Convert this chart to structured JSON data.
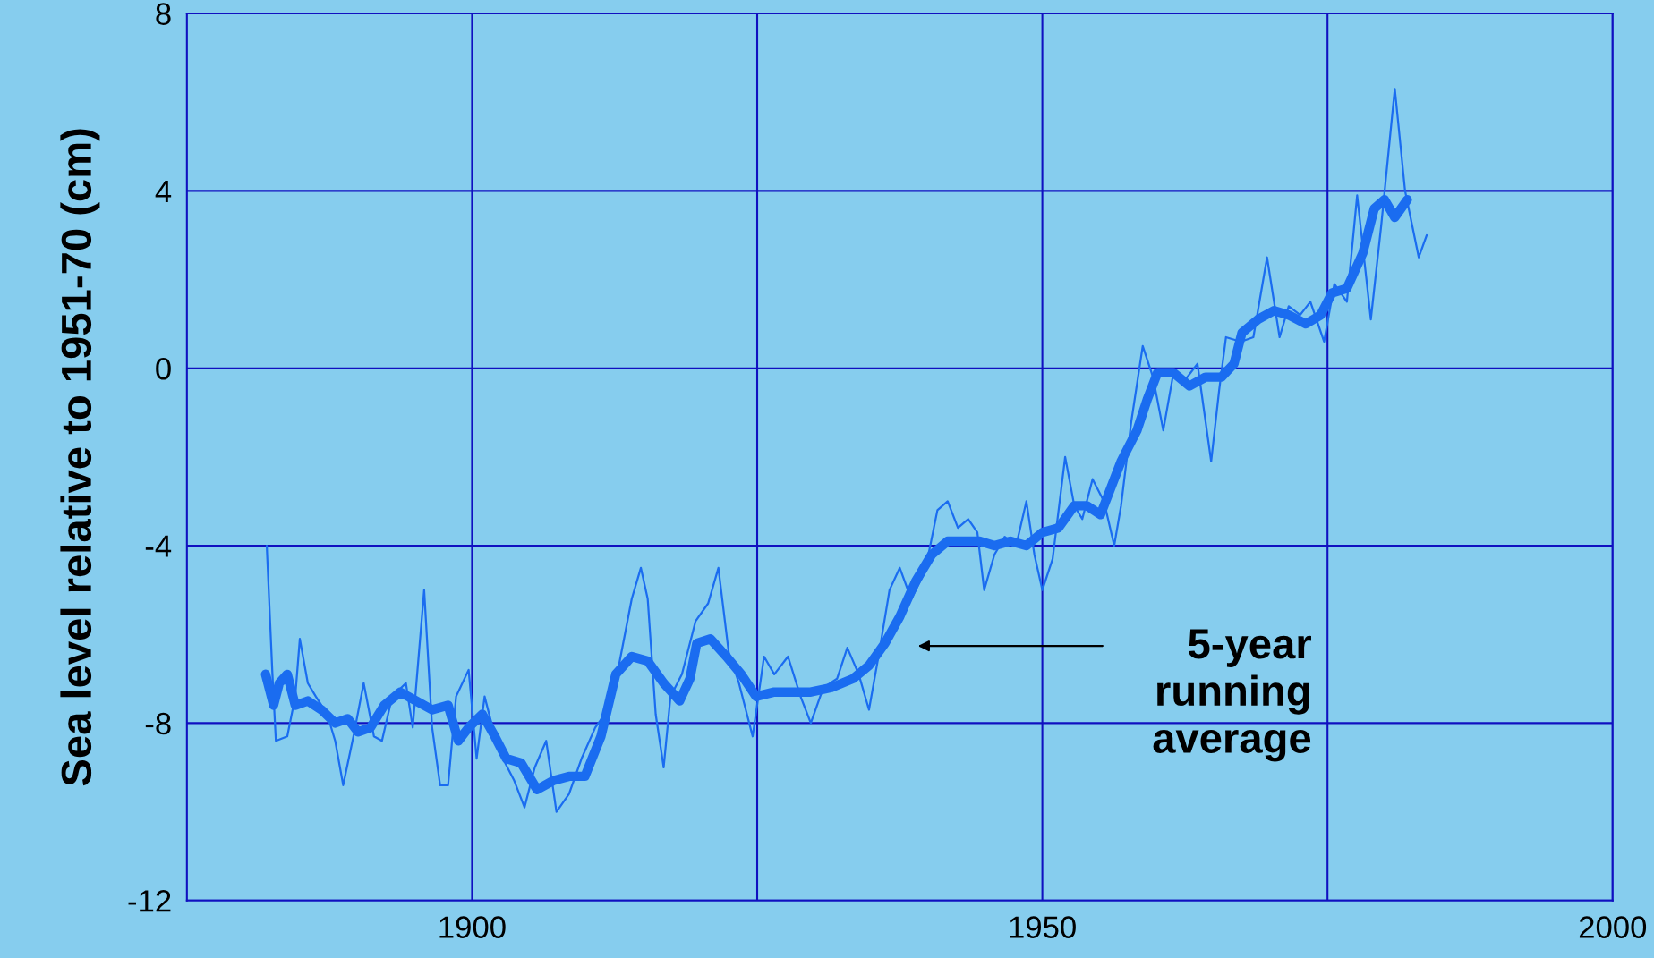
{
  "chart_data": {
    "type": "line",
    "ylabel": "Sea level relative to 1951-70 (cm)",
    "xlim": [
      1875,
      2000
    ],
    "xticks": [
      1900,
      {
        "value": 1925,
        "label": null
      },
      1950,
      {
        "value": 1975,
        "label": null
      },
      2000
    ],
    "ylim": [
      -12,
      8
    ],
    "yticks": [
      -12,
      -8,
      -4,
      0,
      4,
      8
    ],
    "grid": true,
    "line_style": "solid",
    "marker": "none",
    "annotations": [
      "5-year\nrunning\naverage"
    ],
    "series": [
      {
        "color": "#1a6cf0",
        "x": [
          1882.0,
          1882.5,
          1882.8,
          1883.8,
          1884.5,
          1884.9,
          1885.6,
          1886.3,
          1887.3,
          1888.0,
          1888.7,
          1889.6,
          1890.5,
          1891.4,
          1892.1,
          1893.0,
          1894.2,
          1894.8,
          1895.8,
          1896.5,
          1897.2,
          1897.9,
          1898.6,
          1899.7,
          1900.4,
          1901.1,
          1901.8,
          1902.7,
          1903.7,
          1904.6,
          1905.5,
          1906.5,
          1907.4,
          1908.5,
          1909.6,
          1910.8,
          1912.2,
          1913.1,
          1914.0,
          1914.8,
          1915.4,
          1916.1,
          1916.8,
          1917.4,
          1918.4,
          1919.6,
          1920.7,
          1921.6,
          1922.5,
          1923.4,
          1924.6,
          1925.6,
          1926.5,
          1927.7,
          1928.8,
          1929.7,
          1930.8,
          1932.0,
          1932.9,
          1933.9,
          1934.8,
          1935.7,
          1936.6,
          1937.5,
          1938.5,
          1939.7,
          1940.8,
          1941.7,
          1942.6,
          1943.5,
          1944.3,
          1944.9,
          1945.8,
          1946.7,
          1947.7,
          1948.6,
          1949.3,
          1950.0,
          1950.9,
          1952.0,
          1952.8,
          1953.5,
          1954.4,
          1955.4,
          1956.3,
          1956.9,
          1957.8,
          1958.8,
          1959.7,
          1960.6,
          1961.5,
          1962.4,
          1963.6,
          1964.8,
          1965.5,
          1966.1,
          1967.4,
          1968.5,
          1969.7,
          1970.8,
          1971.6,
          1972.6,
          1973.5,
          1974.7,
          1975.6,
          1976.7,
          1977.6,
          1978.8,
          1979.7,
          1980.9,
          1981.8,
          1983.0,
          1983.7
        ],
        "values": [
          -4.0,
          -6.9,
          -8.4,
          -8.3,
          -7.4,
          -6.1,
          -7.1,
          -7.4,
          -7.8,
          -8.4,
          -9.4,
          -8.3,
          -7.1,
          -8.3,
          -8.4,
          -7.4,
          -7.1,
          -8.1,
          -5.0,
          -8.1,
          -9.4,
          -9.4,
          -7.4,
          -6.8,
          -8.8,
          -7.4,
          -8.1,
          -8.8,
          -9.3,
          -9.9,
          -9.0,
          -8.4,
          -10.0,
          -9.6,
          -8.8,
          -8.1,
          -7.6,
          -6.4,
          -5.2,
          -4.5,
          -5.2,
          -7.8,
          -9.0,
          -7.4,
          -6.9,
          -5.7,
          -5.3,
          -4.5,
          -6.4,
          -7.1,
          -8.3,
          -6.5,
          -6.9,
          -6.5,
          -7.4,
          -8.0,
          -7.2,
          -7.0,
          -6.3,
          -6.9,
          -7.7,
          -6.4,
          -5.0,
          -4.5,
          -5.2,
          -4.6,
          -3.2,
          -3.0,
          -3.6,
          -3.4,
          -3.7,
          -5.0,
          -4.2,
          -3.8,
          -4.0,
          -3.0,
          -4.2,
          -5.0,
          -4.3,
          -2.0,
          -3.1,
          -3.4,
          -2.5,
          -3.0,
          -4.0,
          -3.1,
          -1.2,
          0.5,
          -0.2,
          -1.4,
          -0.1,
          -0.3,
          0.1,
          -2.1,
          -0.5,
          0.7,
          0.6,
          0.7,
          2.5,
          0.7,
          1.4,
          1.2,
          1.5,
          0.6,
          1.9,
          1.5,
          3.9,
          1.1,
          3.2,
          6.3,
          4.0,
          2.5,
          3.0
        ]
      },
      {
        "color": "#1a6cf0",
        "x": [
          1881.9,
          1882.6,
          1883.1,
          1883.8,
          1884.5,
          1885.6,
          1886.8,
          1888.0,
          1889.1,
          1890.0,
          1891.1,
          1892.3,
          1893.7,
          1895.1,
          1896.5,
          1897.9,
          1898.8,
          1899.7,
          1900.9,
          1902.0,
          1903.0,
          1904.3,
          1905.7,
          1907.1,
          1908.5,
          1909.9,
          1911.3,
          1912.6,
          1914.0,
          1915.4,
          1916.8,
          1918.2,
          1919.1,
          1919.7,
          1920.9,
          1922.3,
          1923.6,
          1924.9,
          1926.5,
          1928.3,
          1929.7,
          1931.5,
          1933.4,
          1934.8,
          1936.2,
          1937.5,
          1938.9,
          1940.3,
          1941.7,
          1943.1,
          1944.5,
          1945.8,
          1947.2,
          1948.6,
          1950.0,
          1951.4,
          1952.8,
          1953.9,
          1955.1,
          1956.0,
          1956.9,
          1958.3,
          1959.2,
          1960.1,
          1961.5,
          1962.9,
          1964.3,
          1965.7,
          1966.8,
          1967.5,
          1968.9,
          1970.3,
          1971.6,
          1973.1,
          1974.4,
          1975.4,
          1976.7,
          1978.1,
          1979.1,
          1980.0,
          1980.9,
          1982.0
        ],
        "values": [
          -6.9,
          -7.6,
          -7.1,
          -6.9,
          -7.6,
          -7.5,
          -7.7,
          -8.0,
          -7.9,
          -8.2,
          -8.1,
          -7.6,
          -7.3,
          -7.5,
          -7.7,
          -7.6,
          -8.4,
          -8.1,
          -7.8,
          -8.3,
          -8.8,
          -8.9,
          -9.5,
          -9.3,
          -9.2,
          -9.2,
          -8.3,
          -6.9,
          -6.5,
          -6.6,
          -7.1,
          -7.5,
          -7.0,
          -6.2,
          -6.1,
          -6.5,
          -6.9,
          -7.4,
          -7.3,
          -7.3,
          -7.3,
          -7.2,
          -7.0,
          -6.7,
          -6.2,
          -5.6,
          -4.8,
          -4.2,
          -3.9,
          -3.9,
          -3.9,
          -4.0,
          -3.9,
          -4.0,
          -3.7,
          -3.6,
          -3.1,
          -3.1,
          -3.3,
          -2.7,
          -2.1,
          -1.4,
          -0.7,
          -0.1,
          -0.1,
          -0.4,
          -0.2,
          -0.2,
          0.1,
          0.8,
          1.1,
          1.3,
          1.2,
          1.0,
          1.2,
          1.7,
          1.8,
          2.6,
          3.6,
          3.8,
          3.4,
          3.8
        ]
      }
    ]
  }
}
